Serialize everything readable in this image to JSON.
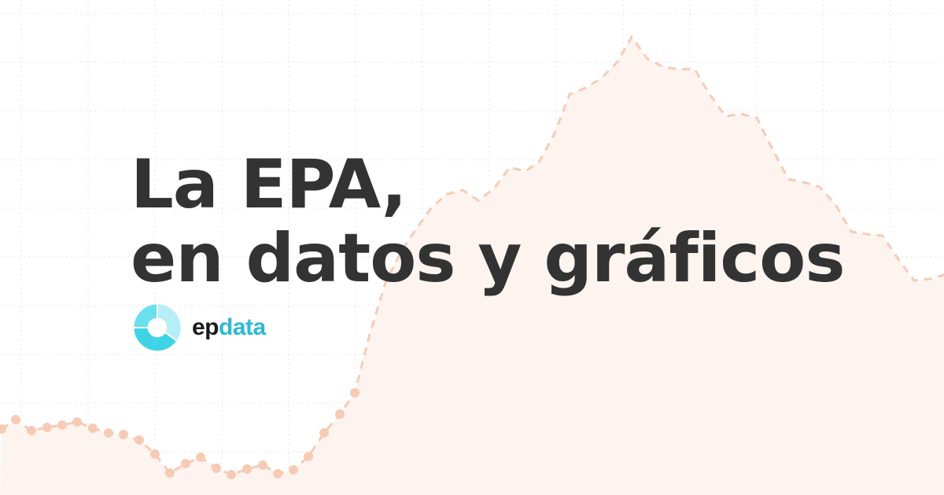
{
  "title": {
    "line1": "La EPA,",
    "line2": "en datos y gráficos"
  },
  "logo": {
    "brand_dark": "ep",
    "brand_accent": "data",
    "accent_color": "#2cb9d4",
    "icon": "donut-chart-icon"
  },
  "colors": {
    "line": "#f6cbb5",
    "area": "#fdf4ef",
    "grid": "#e6e6e6",
    "text": "#333333"
  }
}
